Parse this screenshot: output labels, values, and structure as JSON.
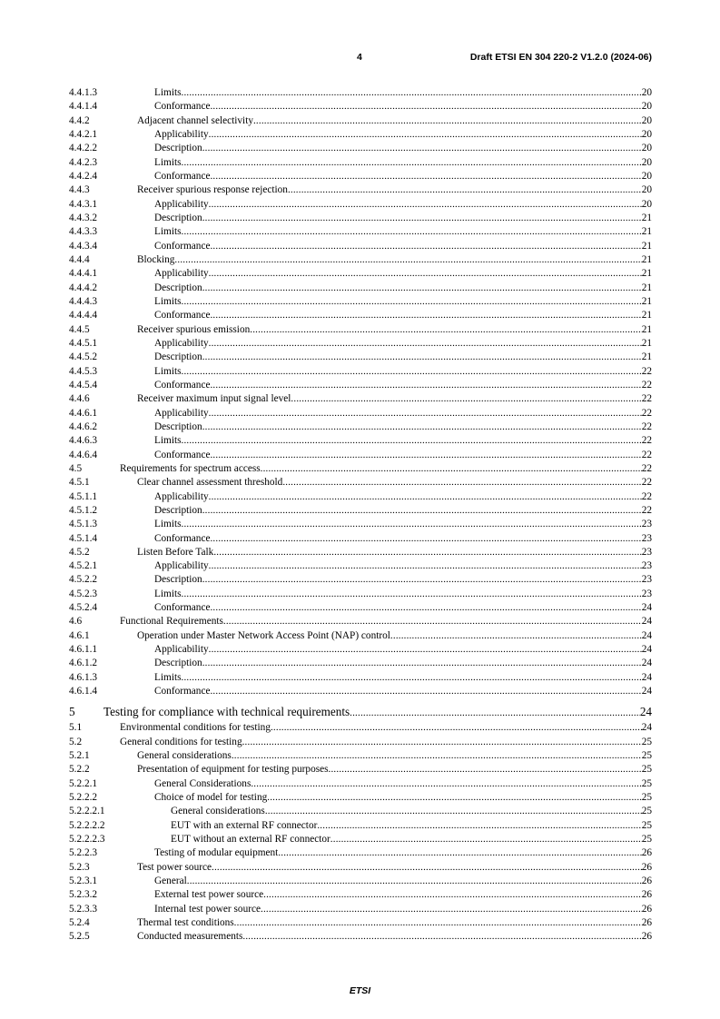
{
  "header": {
    "page_number": "4",
    "document_title": "Draft ETSI EN 304 220-2 V1.2.0 (2024-06)"
  },
  "toc": [
    {
      "num": "4.4.1.3",
      "title": "Limits",
      "page": "20",
      "level": 4
    },
    {
      "num": "4.4.1.4",
      "title": "Conformance",
      "page": "20",
      "level": 4
    },
    {
      "num": "4.4.2",
      "title": "Adjacent channel selectivity",
      "page": "20",
      "level": 3
    },
    {
      "num": "4.4.2.1",
      "title": "Applicability",
      "page": "20",
      "level": 4
    },
    {
      "num": "4.4.2.2",
      "title": "Description",
      "page": "20",
      "level": 4
    },
    {
      "num": "4.4.2.3",
      "title": "Limits",
      "page": "20",
      "level": 4
    },
    {
      "num": "4.4.2.4",
      "title": "Conformance",
      "page": "20",
      "level": 4
    },
    {
      "num": "4.4.3",
      "title": "Receiver spurious response rejection",
      "page": "20",
      "level": 3
    },
    {
      "num": "4.4.3.1",
      "title": "Applicability",
      "page": "20",
      "level": 4
    },
    {
      "num": "4.4.3.2",
      "title": "Description",
      "page": "21",
      "level": 4
    },
    {
      "num": "4.4.3.3",
      "title": "Limits",
      "page": "21",
      "level": 4
    },
    {
      "num": "4.4.3.4",
      "title": "Conformance",
      "page": "21",
      "level": 4
    },
    {
      "num": "4.4.4",
      "title": "Blocking",
      "page": "21",
      "level": 3
    },
    {
      "num": "4.4.4.1",
      "title": "Applicability",
      "page": "21",
      "level": 4
    },
    {
      "num": "4.4.4.2",
      "title": "Description",
      "page": "21",
      "level": 4
    },
    {
      "num": "4.4.4.3",
      "title": "Limits",
      "page": "21",
      "level": 4
    },
    {
      "num": "4.4.4.4",
      "title": "Conformance",
      "page": "21",
      "level": 4
    },
    {
      "num": "4.4.5",
      "title": "Receiver spurious emission",
      "page": "21",
      "level": 3
    },
    {
      "num": "4.4.5.1",
      "title": "Applicability",
      "page": "21",
      "level": 4
    },
    {
      "num": "4.4.5.2",
      "title": "Description",
      "page": "21",
      "level": 4
    },
    {
      "num": "4.4.5.3",
      "title": "Limits",
      "page": "22",
      "level": 4
    },
    {
      "num": "4.4.5.4",
      "title": "Conformance",
      "page": "22",
      "level": 4
    },
    {
      "num": "4.4.6",
      "title": "Receiver maximum input signal level",
      "page": "22",
      "level": 3
    },
    {
      "num": "4.4.6.1",
      "title": "Applicability",
      "page": "22",
      "level": 4
    },
    {
      "num": "4.4.6.2",
      "title": "Description",
      "page": "22",
      "level": 4
    },
    {
      "num": "4.4.6.3",
      "title": "Limits",
      "page": "22",
      "level": 4
    },
    {
      "num": "4.4.6.4",
      "title": "Conformance",
      "page": "22",
      "level": 4
    },
    {
      "num": "4.5",
      "title": "Requirements for spectrum access",
      "page": "22",
      "level": 2
    },
    {
      "num": "4.5.1",
      "title": "Clear channel assessment threshold",
      "page": "22",
      "level": 3
    },
    {
      "num": "4.5.1.1",
      "title": "Applicability",
      "page": "22",
      "level": 4
    },
    {
      "num": "4.5.1.2",
      "title": "Description",
      "page": "22",
      "level": 4
    },
    {
      "num": "4.5.1.3",
      "title": "Limits",
      "page": "23",
      "level": 4
    },
    {
      "num": "4.5.1.4",
      "title": "Conformance",
      "page": "23",
      "level": 4
    },
    {
      "num": "4.5.2",
      "title": "Listen Before Talk",
      "page": "23",
      "level": 3
    },
    {
      "num": "4.5.2.1",
      "title": "Applicability",
      "page": "23",
      "level": 4
    },
    {
      "num": "4.5.2.2",
      "title": "Description",
      "page": "23",
      "level": 4
    },
    {
      "num": "4.5.2.3",
      "title": "Limits",
      "page": "23",
      "level": 4
    },
    {
      "num": "4.5.2.4",
      "title": "Conformance",
      "page": "24",
      "level": 4
    },
    {
      "num": "4.6",
      "title": "Functional Requirements",
      "page": "24",
      "level": 2
    },
    {
      "num": "4.6.1",
      "title": "Operation under Master Network Access Point (NAP) control",
      "page": "24",
      "level": 3
    },
    {
      "num": "4.6.1.1",
      "title": "Applicability",
      "page": "24",
      "level": 4
    },
    {
      "num": "4.6.1.2",
      "title": "Description",
      "page": "24",
      "level": 4
    },
    {
      "num": "4.6.1.3",
      "title": "Limits",
      "page": "24",
      "level": 4
    },
    {
      "num": "4.6.1.4",
      "title": "Conformance",
      "page": "24",
      "level": 4
    },
    {
      "num": "5",
      "title": "Testing for compliance with technical requirements",
      "page": "24",
      "level": 1
    },
    {
      "num": "5.1",
      "title": "Environmental conditions for testing",
      "page": "24",
      "level": 2
    },
    {
      "num": "5.2",
      "title": "General conditions for testing",
      "page": "25",
      "level": 2
    },
    {
      "num": "5.2.1",
      "title": "General considerations",
      "page": "25",
      "level": 3
    },
    {
      "num": "5.2.2",
      "title": "Presentation of equipment for testing purposes",
      "page": "25",
      "level": 3
    },
    {
      "num": "5.2.2.1",
      "title": "General Considerations",
      "page": "25",
      "level": 4
    },
    {
      "num": "5.2.2.2",
      "title": "Choice of model for testing",
      "page": "25",
      "level": 4
    },
    {
      "num": "5.2.2.2.1",
      "title": "General considerations",
      "page": "25",
      "level": 5
    },
    {
      "num": "5.2.2.2.2",
      "title": "EUT with an external RF connector",
      "page": "25",
      "level": 5
    },
    {
      "num": "5.2.2.2.3",
      "title": "EUT without an external RF connector",
      "page": "25",
      "level": 5
    },
    {
      "num": "5.2.2.3",
      "title": "Testing of modular equipment",
      "page": "26",
      "level": 4
    },
    {
      "num": "5.2.3",
      "title": "Test power source",
      "page": "26",
      "level": 3
    },
    {
      "num": "5.2.3.1",
      "title": "General",
      "page": "26",
      "level": 4
    },
    {
      "num": "5.2.3.2",
      "title": "External test power source",
      "page": "26",
      "level": 4
    },
    {
      "num": "5.2.3.3",
      "title": "Internal test power source",
      "page": "26",
      "level": 4
    },
    {
      "num": "5.2.4",
      "title": "Thermal test conditions",
      "page": "26",
      "level": 3
    },
    {
      "num": "5.2.5",
      "title": "Conducted measurements",
      "page": "26",
      "level": 3
    }
  ],
  "footer": {
    "text": "ETSI"
  }
}
